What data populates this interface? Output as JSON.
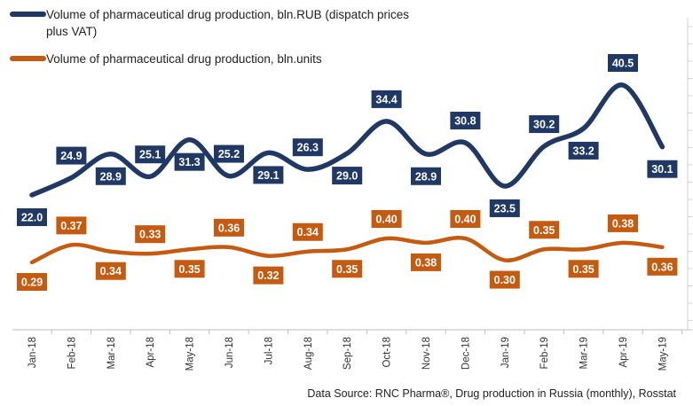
{
  "chart_data": {
    "type": "line",
    "categories": [
      "Jan-18",
      "Feb-18",
      "Mar-18",
      "Apr-18",
      "May-18",
      "Jun-18",
      "Jul-18",
      "Aug-18",
      "Sep-18",
      "Oct-18",
      "Nov-18",
      "Dec-18",
      "Jan-19",
      "Feb-19",
      "Mar-19",
      "Apr-19",
      "May-19"
    ],
    "series": [
      {
        "name": "Volume of pharmaceutical drug production, bln.RUB (dispatch prices plus VAT)",
        "name_lines": [
          "Volume of pharmaceutical drug production, bln.RUB (dispatch prices",
          "plus VAT)"
        ],
        "color": "#203864",
        "values": [
          22.0,
          24.9,
          28.9,
          25.1,
          31.3,
          25.2,
          29.1,
          26.3,
          29.0,
          34.4,
          28.9,
          30.8,
          23.5,
          30.2,
          33.2,
          40.5,
          30.1
        ],
        "labels": [
          "22.0",
          "24.9",
          "28.9",
          "25.1",
          "31.3",
          "25.2",
          "29.1",
          "26.3",
          "29.0",
          "34.4",
          "28.9",
          "30.8",
          "23.5",
          "30.2",
          "33.2",
          "40.5",
          "30.1"
        ]
      },
      {
        "name": "Volume of pharmaceutical drug production, bln.units",
        "name_lines": [
          "Volume of pharmaceutical drug production, bln.units"
        ],
        "color": "#c55a11",
        "values": [
          0.29,
          0.37,
          0.34,
          0.33,
          0.35,
          0.36,
          0.32,
          0.34,
          0.35,
          0.4,
          0.38,
          0.4,
          0.3,
          0.35,
          0.35,
          0.38,
          0.36
        ],
        "labels": [
          "0.29",
          "0.37",
          "0.34",
          "0.33",
          "0.35",
          "0.36",
          "0.32",
          "0.34",
          "0.35",
          "0.40",
          "0.38",
          "0.40",
          "0.30",
          "0.35",
          "0.35",
          "0.38",
          "0.36"
        ]
      }
    ],
    "legend_position": "top-left",
    "grid": false,
    "source": "Data Source: RNC Pharma®, Drug production in Russia (monthly), Rosstat"
  }
}
